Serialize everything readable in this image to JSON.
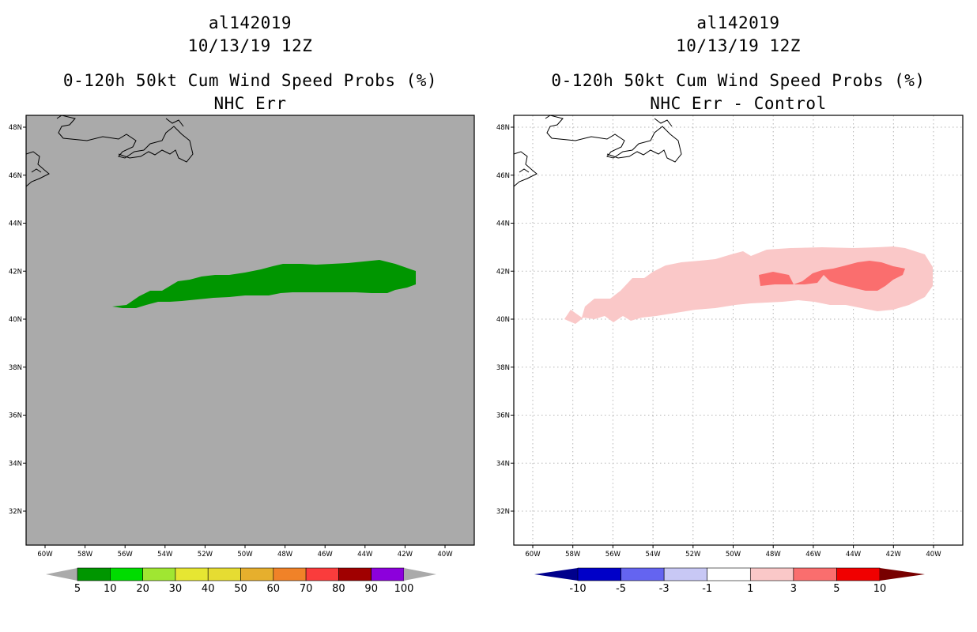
{
  "left_panel": {
    "storm_id": "al142019",
    "datetime": "10/13/19 12Z",
    "product": "0-120h 50kt Cum Wind Speed Probs (%)",
    "subtitle": "NHC Err",
    "colorbar": {
      "labels": [
        "5",
        "10",
        "20",
        "30",
        "40",
        "50",
        "60",
        "70",
        "80",
        "90",
        "100"
      ],
      "colors": [
        "#009600",
        "#00dc00",
        "#a0e632",
        "#e6e632",
        "#e6dc32",
        "#e6af2d",
        "#f08228",
        "#fa3c3c",
        "#a00000",
        "#8c00dc"
      ]
    }
  },
  "right_panel": {
    "storm_id": "al142019",
    "datetime": "10/13/19 12Z",
    "product": "0-120h 50kt Cum Wind Speed Probs (%)",
    "subtitle": "NHC Err - Control",
    "colorbar": {
      "labels": [
        "-10",
        "-5",
        "-3",
        "-1",
        "1",
        "3",
        "5",
        "10"
      ],
      "colors": [
        "#0000c8",
        "#6464f0",
        "#c8c8f5",
        "#ffffff",
        "#fac8c8",
        "#fa6e6e",
        "#f00000"
      ]
    }
  },
  "axes": {
    "lon_labels": [
      "60W",
      "58W",
      "56W",
      "54W",
      "52W",
      "50W",
      "48W",
      "46W",
      "44W",
      "42W",
      "40W"
    ],
    "lat_labels": [
      "32N",
      "34N",
      "36N",
      "38N",
      "40N",
      "42N",
      "44N",
      "46N",
      "48N"
    ]
  },
  "colors": {
    "land_mask": "#aaaaaa",
    "ocean": "#ffffff",
    "swath_green": "#009600",
    "diff_light": "#fac8c8",
    "diff_mid": "#fa6e6e"
  }
}
